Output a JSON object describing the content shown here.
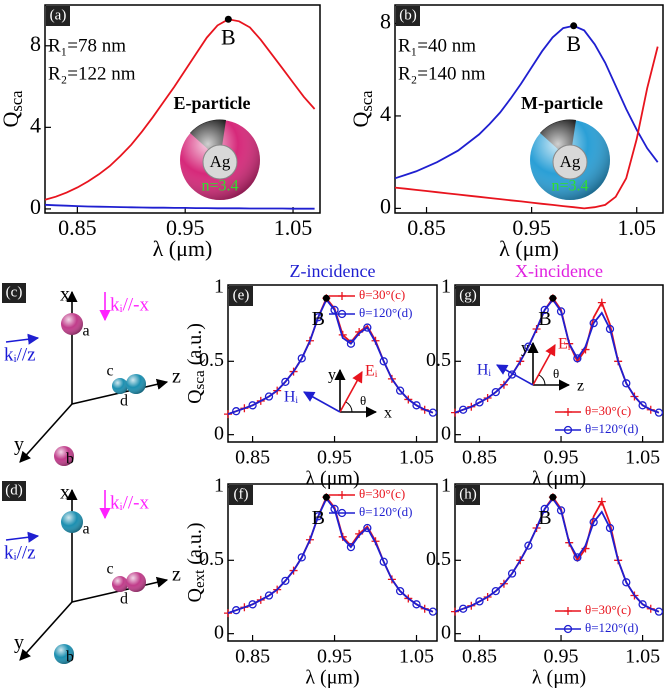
{
  "chart_data": [
    {
      "type": "line",
      "panel": "(a)",
      "xlabel": "λ (μm)",
      "ylabel": "Q",
      "ylabel_sub": "sca",
      "xlim": [
        0.82,
        1.075
      ],
      "xticks": [
        0.85,
        0.95,
        1.05
      ],
      "ylim": [
        -0.2,
        10
      ],
      "yticks": [
        0,
        4,
        8
      ],
      "x": [
        0.82,
        0.83,
        0.84,
        0.85,
        0.86,
        0.87,
        0.88,
        0.89,
        0.9,
        0.91,
        0.92,
        0.93,
        0.94,
        0.95,
        0.96,
        0.97,
        0.98,
        0.99,
        1.0,
        1.01,
        1.02,
        1.03,
        1.04,
        1.05,
        1.06,
        1.07
      ],
      "series": [
        {
          "color": "#e8141e",
          "values": [
            0.45,
            0.6,
            0.8,
            1.05,
            1.35,
            1.7,
            2.1,
            2.6,
            3.15,
            3.8,
            4.5,
            5.25,
            6.0,
            6.8,
            7.6,
            8.4,
            9.0,
            9.3,
            9.2,
            8.9,
            8.3,
            7.6,
            6.9,
            6.2,
            5.5,
            4.9
          ]
        },
        {
          "color": "#1f1fd0",
          "values": [
            0.2,
            0.18,
            0.16,
            0.14,
            0.12,
            0.11,
            0.1,
            0.09,
            0.08,
            0.07,
            0.06,
            0.06,
            0.05,
            0.05,
            0.04,
            0.04,
            0.03,
            0.03,
            0.03,
            0.02,
            0.02,
            0.02,
            0.02,
            0.01,
            0.01,
            0.01
          ]
        }
      ],
      "point": {
        "label": "B",
        "x": 0.99,
        "y": 9.3
      },
      "notes": [
        "R₁=78 nm",
        "R₂=122 nm"
      ],
      "particle": {
        "name": "E-particle",
        "core": "Ag",
        "shell": "n=3.4",
        "color": "#d6297a"
      }
    },
    {
      "type": "line",
      "panel": "(b)",
      "xlabel": "λ (μm)",
      "ylabel": "Q",
      "ylabel_sub": "sca",
      "xlim": [
        0.82,
        1.075
      ],
      "xticks": [
        0.85,
        0.95,
        1.05
      ],
      "ylim": [
        -0.2,
        8.8
      ],
      "yticks": [
        0,
        4,
        8
      ],
      "x": [
        0.82,
        0.83,
        0.84,
        0.85,
        0.86,
        0.87,
        0.88,
        0.89,
        0.9,
        0.91,
        0.92,
        0.93,
        0.94,
        0.95,
        0.96,
        0.97,
        0.98,
        0.99,
        1.0,
        1.01,
        1.02,
        1.03,
        1.04,
        1.05,
        1.06,
        1.07
      ],
      "series": [
        {
          "color": "#1f1fd0",
          "values": [
            1.3,
            1.45,
            1.6,
            1.8,
            2.0,
            2.25,
            2.5,
            2.85,
            3.2,
            3.65,
            4.15,
            4.75,
            5.4,
            6.1,
            6.8,
            7.4,
            7.8,
            7.9,
            7.7,
            7.1,
            6.3,
            5.3,
            4.3,
            3.4,
            2.6,
            2.0
          ]
        },
        {
          "color": "#e8141e",
          "values": [
            0.9,
            0.85,
            0.8,
            0.75,
            0.7,
            0.65,
            0.6,
            0.55,
            0.5,
            0.45,
            0.4,
            0.35,
            0.3,
            0.25,
            0.2,
            0.15,
            0.1,
            0.05,
            0.0,
            0.05,
            0.15,
            0.5,
            1.3,
            3.0,
            5.2,
            7.0
          ]
        }
      ],
      "point": {
        "label": "B",
        "x": 0.99,
        "y": 7.9
      },
      "notes": [
        "R₁=40 nm",
        "R₂=140 nm"
      ],
      "particle": {
        "name": "M-particle",
        "core": "Ag",
        "shell": "n=3.4",
        "color": "#2a9fd6"
      }
    },
    {
      "type": "line",
      "panel": "(e)",
      "title": "Z-incidence",
      "title_color": "#1f1fd0",
      "xlabel": "λ (μm)",
      "ylabel": "Q",
      "ylabel_sub": "sca",
      "ylabel_unit": " (a.u.)",
      "xlim": [
        0.82,
        1.075
      ],
      "xticks": [
        0.85,
        0.95,
        1.05
      ],
      "ylim": [
        -0.05,
        1.02
      ],
      "yticks": [
        0,
        0.5,
        1
      ],
      "legend": "upper right",
      "x": [
        0.82,
        0.83,
        0.84,
        0.85,
        0.86,
        0.87,
        0.88,
        0.89,
        0.9,
        0.91,
        0.92,
        0.93,
        0.94,
        0.95,
        0.96,
        0.97,
        0.98,
        0.99,
        1.0,
        1.01,
        1.02,
        1.03,
        1.04,
        1.05,
        1.06,
        1.07
      ],
      "series": [
        {
          "name": "θ=30°(c)",
          "color": "#e8141e",
          "marker": "+",
          "values": [
            0.14,
            0.16,
            0.18,
            0.2,
            0.23,
            0.26,
            0.3,
            0.36,
            0.43,
            0.52,
            0.64,
            0.8,
            0.93,
            0.86,
            0.68,
            0.63,
            0.7,
            0.74,
            0.64,
            0.5,
            0.38,
            0.3,
            0.24,
            0.2,
            0.17,
            0.15
          ]
        },
        {
          "name": "θ=120°(d)",
          "color": "#1f1fd0",
          "marker": "o",
          "values": [
            0.14,
            0.16,
            0.18,
            0.2,
            0.23,
            0.26,
            0.3,
            0.36,
            0.43,
            0.52,
            0.64,
            0.8,
            0.92,
            0.85,
            0.66,
            0.62,
            0.69,
            0.73,
            0.63,
            0.5,
            0.38,
            0.3,
            0.24,
            0.2,
            0.17,
            0.15
          ]
        }
      ],
      "point": {
        "label": "B",
        "x": 0.94,
        "y": 0.93
      },
      "inset": [
        "y",
        "Eᵢ",
        "Hᵢ",
        "θ",
        "x"
      ]
    },
    {
      "type": "line",
      "panel": "(g)",
      "title": "X-incidence",
      "title_color": "#e020e0",
      "xlabel": "λ (μm)",
      "xlim": [
        0.82,
        1.075
      ],
      "xticks": [
        0.85,
        0.95,
        1.05
      ],
      "ylim": [
        -0.05,
        1.02
      ],
      "yticks": [
        0,
        0.5,
        1
      ],
      "legend": "lower right",
      "x": [
        0.82,
        0.83,
        0.84,
        0.85,
        0.86,
        0.87,
        0.88,
        0.89,
        0.9,
        0.91,
        0.92,
        0.93,
        0.94,
        0.95,
        0.96,
        0.97,
        0.98,
        0.99,
        1.0,
        1.01,
        1.02,
        1.03,
        1.04,
        1.05,
        1.06,
        1.07
      ],
      "series": [
        {
          "name": "θ=30°(c)",
          "color": "#e8141e",
          "marker": "+",
          "values": [
            0.15,
            0.17,
            0.19,
            0.22,
            0.25,
            0.29,
            0.34,
            0.41,
            0.5,
            0.6,
            0.72,
            0.85,
            0.93,
            0.85,
            0.62,
            0.5,
            0.58,
            0.8,
            0.9,
            0.75,
            0.5,
            0.35,
            0.26,
            0.2,
            0.17,
            0.15
          ]
        },
        {
          "name": "θ=120°(d)",
          "color": "#1f1fd0",
          "marker": "o",
          "values": [
            0.15,
            0.17,
            0.19,
            0.22,
            0.25,
            0.29,
            0.34,
            0.41,
            0.5,
            0.6,
            0.72,
            0.85,
            0.92,
            0.84,
            0.62,
            0.52,
            0.6,
            0.76,
            0.83,
            0.72,
            0.5,
            0.35,
            0.26,
            0.2,
            0.17,
            0.15
          ]
        }
      ],
      "point": {
        "label": "B",
        "x": 0.94,
        "y": 0.93
      },
      "inset": [
        "y",
        "Eᵢ",
        "Hᵢ",
        "θ",
        "z"
      ]
    },
    {
      "type": "line",
      "panel": "(f)",
      "xlabel": "λ (μm)",
      "ylabel": "Q",
      "ylabel_sub": "ext",
      "ylabel_unit": " (a.u.)",
      "xlim": [
        0.82,
        1.075
      ],
      "xticks": [
        0.85,
        0.95,
        1.05
      ],
      "ylim": [
        -0.05,
        1.02
      ],
      "yticks": [
        0,
        0.5,
        1
      ],
      "legend": "upper right",
      "x": [
        0.82,
        0.83,
        0.84,
        0.85,
        0.86,
        0.87,
        0.88,
        0.89,
        0.9,
        0.91,
        0.92,
        0.93,
        0.94,
        0.95,
        0.96,
        0.97,
        0.98,
        0.99,
        1.0,
        1.01,
        1.02,
        1.03,
        1.04,
        1.05,
        1.06,
        1.07
      ],
      "series": [
        {
          "name": "θ=30°(c)",
          "color": "#e8141e",
          "marker": "+",
          "values": [
            0.14,
            0.16,
            0.18,
            0.2,
            0.23,
            0.26,
            0.3,
            0.36,
            0.43,
            0.52,
            0.64,
            0.8,
            0.93,
            0.86,
            0.66,
            0.6,
            0.68,
            0.73,
            0.63,
            0.49,
            0.37,
            0.29,
            0.24,
            0.2,
            0.17,
            0.15
          ]
        },
        {
          "name": "θ=120°(d)",
          "color": "#1f1fd0",
          "marker": "o",
          "values": [
            0.14,
            0.16,
            0.18,
            0.2,
            0.23,
            0.26,
            0.3,
            0.36,
            0.43,
            0.52,
            0.64,
            0.8,
            0.92,
            0.85,
            0.65,
            0.59,
            0.67,
            0.72,
            0.62,
            0.49,
            0.37,
            0.29,
            0.24,
            0.2,
            0.17,
            0.15
          ]
        }
      ],
      "point": {
        "label": "B",
        "x": 0.94,
        "y": 0.93
      }
    },
    {
      "type": "line",
      "panel": "(h)",
      "xlabel": "λ (μm)",
      "xlim": [
        0.82,
        1.075
      ],
      "xticks": [
        0.85,
        0.95,
        1.05
      ],
      "ylim": [
        -0.05,
        1.02
      ],
      "yticks": [
        0,
        0.5,
        1
      ],
      "legend": "lower right",
      "x": [
        0.82,
        0.83,
        0.84,
        0.85,
        0.86,
        0.87,
        0.88,
        0.89,
        0.9,
        0.91,
        0.92,
        0.93,
        0.94,
        0.95,
        0.96,
        0.97,
        0.98,
        0.99,
        1.0,
        1.01,
        1.02,
        1.03,
        1.04,
        1.05,
        1.06,
        1.07
      ],
      "series": [
        {
          "name": "θ=30°(c)",
          "color": "#e8141e",
          "marker": "+",
          "values": [
            0.15,
            0.17,
            0.19,
            0.22,
            0.25,
            0.29,
            0.34,
            0.41,
            0.5,
            0.6,
            0.72,
            0.85,
            0.93,
            0.85,
            0.62,
            0.5,
            0.58,
            0.8,
            0.9,
            0.75,
            0.5,
            0.35,
            0.26,
            0.2,
            0.17,
            0.15
          ]
        },
        {
          "name": "θ=120°(d)",
          "color": "#1f1fd0",
          "marker": "o",
          "values": [
            0.15,
            0.17,
            0.19,
            0.22,
            0.25,
            0.29,
            0.34,
            0.41,
            0.5,
            0.6,
            0.72,
            0.85,
            0.92,
            0.84,
            0.62,
            0.52,
            0.6,
            0.76,
            0.83,
            0.72,
            0.5,
            0.35,
            0.26,
            0.2,
            0.17,
            0.15
          ]
        }
      ],
      "point": {
        "label": "B",
        "x": 0.94,
        "y": 0.93
      }
    }
  ],
  "diagrams": [
    {
      "panel": "(c)",
      "axis_labels": [
        "x",
        "y",
        "z"
      ],
      "k_labels": [
        "kᵢ//-x",
        "kᵢ//z"
      ],
      "k_colors": [
        "#ff20ff",
        "#1a1ad6"
      ],
      "spheres": [
        {
          "label": "a",
          "color": "#c03c8a"
        },
        {
          "label": "b",
          "color": "#c03c8a"
        },
        {
          "label": "c",
          "color": "#1c8fb0"
        },
        {
          "label": "d",
          "color": "#1c8fb0"
        }
      ]
    },
    {
      "panel": "(d)",
      "axis_labels": [
        "x",
        "y",
        "z"
      ],
      "k_labels": [
        "kᵢ//-x",
        "kᵢ//z"
      ],
      "k_colors": [
        "#ff20ff",
        "#1a1ad6"
      ],
      "spheres": [
        {
          "label": "a",
          "color": "#1c8fb0"
        },
        {
          "label": "b",
          "color": "#1c8fb0"
        },
        {
          "label": "c",
          "color": "#c03c8a"
        },
        {
          "label": "d",
          "color": "#c03c8a"
        }
      ]
    }
  ]
}
